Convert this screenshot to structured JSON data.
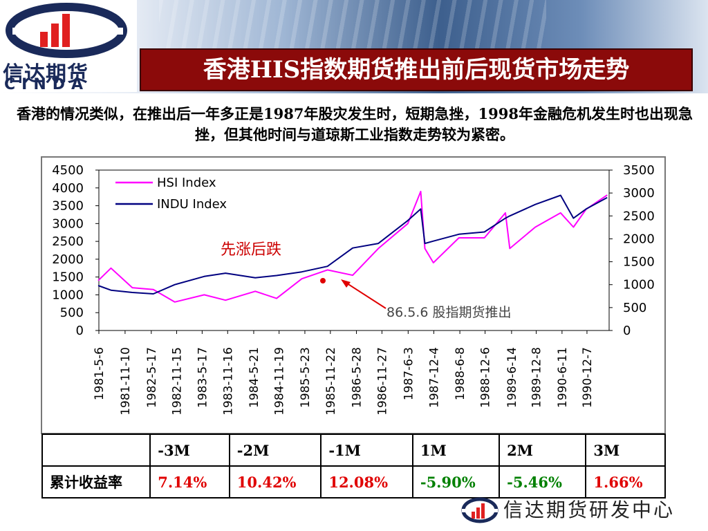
{
  "header": {
    "logo_cn": "信达期货",
    "logo_en": "CINDA",
    "title": "香港HIS指数期货推出前后现货市场走势"
  },
  "description": "香港的情况类似，在推出后一年多正是1987年股灾发生时，短期急挫，1998年金融危机发生时也出现急挫，但其他时间与道琼斯工业指数走势较为紧密。",
  "chart_data": {
    "type": "line",
    "series": [
      {
        "name": "HSI Index",
        "color": "#ff00ff",
        "x": [
          "1981-05",
          "1981-08",
          "1982-01",
          "1982-06",
          "1982-11",
          "1983-06",
          "1983-11",
          "1984-06",
          "1984-11",
          "1985-05",
          "1985-11",
          "1986-05",
          "1986-11",
          "1987-06",
          "1987-09",
          "1987-10",
          "1987-12",
          "1988-06",
          "1988-12",
          "1989-05",
          "1989-06",
          "1989-12",
          "1990-06",
          "1990-09",
          "1990-12",
          "1991-05"
        ],
        "values": [
          1400,
          1750,
          1200,
          1150,
          800,
          1000,
          850,
          1100,
          900,
          1450,
          1700,
          1550,
          2300,
          3000,
          3900,
          2300,
          1900,
          2600,
          2600,
          3300,
          2300,
          2900,
          3300,
          2900,
          3400,
          3800
        ]
      },
      {
        "name": "INDU Index",
        "color": "#000080",
        "x": [
          "1981-05",
          "1981-08",
          "1982-01",
          "1982-06",
          "1982-11",
          "1983-06",
          "1983-11",
          "1984-06",
          "1984-11",
          "1985-05",
          "1985-11",
          "1986-05",
          "1986-11",
          "1987-06",
          "1987-09",
          "1987-10",
          "1987-12",
          "1988-06",
          "1988-12",
          "1989-05",
          "1989-06",
          "1989-12",
          "1990-06",
          "1990-09",
          "1990-12",
          "1991-05"
        ],
        "values": [
          980,
          880,
          830,
          800,
          1000,
          1180,
          1250,
          1150,
          1200,
          1280,
          1400,
          1800,
          1900,
          2400,
          2650,
          1900,
          1950,
          2100,
          2150,
          2450,
          2500,
          2750,
          2950,
          2450,
          2650,
          2900
        ]
      }
    ],
    "y_left": {
      "ticks": [
        "4500",
        "4000",
        "3500",
        "3000",
        "2500",
        "2000",
        "1500",
        "1000",
        "500",
        "0"
      ],
      "min": 0,
      "max": 4500
    },
    "y_right": {
      "ticks": [
        "3500",
        "3000",
        "2500",
        "2000",
        "1500",
        "1000",
        "500",
        "0"
      ],
      "min": 0,
      "max": 3500
    },
    "x_ticks": [
      "1981-5-6",
      "1981-11-10",
      "1982-5-17",
      "1982-11-15",
      "1983-5-17",
      "1983-11-16",
      "1984-5-21",
      "1984-11-19",
      "1985-5-23",
      "1985-11-22",
      "1986-5-28",
      "1986-11-27",
      "1987-6-3",
      "1987-12-4",
      "1988-6-8",
      "1988-12-6",
      "1989-6-14",
      "1989-12-8",
      "1990-6-11",
      "1990-12-7"
    ],
    "annotations": {
      "rise_fall": "先涨后跌",
      "launch": "86.5.6 股指期货推出"
    }
  },
  "table": {
    "headers": [
      "",
      "-3M",
      "-2M",
      "-1M",
      "1M",
      "2M",
      "3M"
    ],
    "row_label": "累计收益率",
    "values": [
      "7.14%",
      "10.42%",
      "12.08%",
      "-5.90%",
      "-5.46%",
      "1.66%"
    ],
    "value_colors": [
      "#e00000",
      "#e00000",
      "#e00000",
      "#008000",
      "#008000",
      "#e00000"
    ]
  },
  "footer": {
    "text": "信达期货研发中心"
  }
}
